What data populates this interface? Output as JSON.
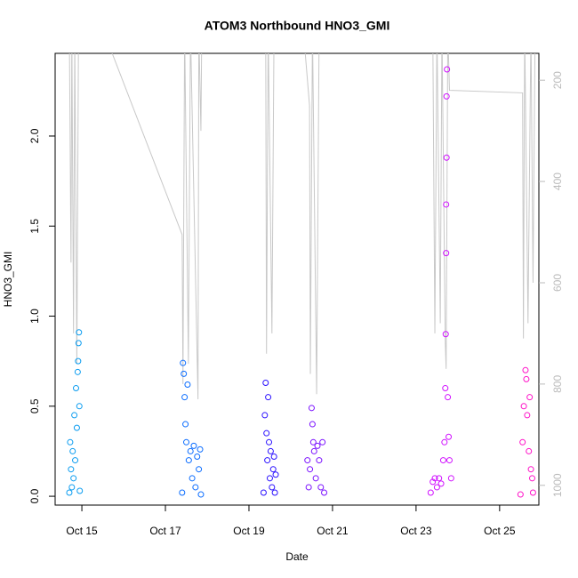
{
  "chart_data": {
    "type": "scatter",
    "title": "ATOM3 Northbound HNO3_GMI",
    "x_label": "Date",
    "y_label": "HNO3_GMI",
    "xlim": [
      14.36,
      25.94
    ],
    "ylim": [
      -0.049,
      2.459
    ],
    "y2lim": [
      1039,
      147
    ],
    "xticks": [
      {
        "value": 15,
        "label": "Oct 15"
      },
      {
        "value": 17,
        "label": "Oct 17"
      },
      {
        "value": 19,
        "label": "Oct 19"
      },
      {
        "value": 21,
        "label": "Oct 21"
      },
      {
        "value": 23,
        "label": "Oct 23"
      },
      {
        "value": 25,
        "label": "Oct 25"
      }
    ],
    "yticks": [
      {
        "value": 0,
        "label": "0.0"
      },
      0.5,
      {
        "value": 1,
        "label": "1.0"
      },
      1.5,
      {
        "value": 2,
        "label": "2.0"
      }
    ],
    "y2ticks": [
      200,
      400,
      600,
      800,
      1000
    ],
    "series": [
      {
        "color": "#0a9cf0",
        "x": [
          14.7,
          14.72,
          14.74,
          14.76,
          14.78,
          14.8,
          14.82,
          14.84,
          14.86,
          14.88,
          14.9,
          14.91,
          14.92,
          14.93,
          14.94,
          14.95
        ],
        "values": [
          0.02,
          0.3,
          0.15,
          0.05,
          0.25,
          0.1,
          0.45,
          0.2,
          0.6,
          0.38,
          0.69,
          0.75,
          0.85,
          0.91,
          0.5,
          0.03
        ]
      },
      {
        "color": "#0a6cff",
        "x": [
          17.4,
          17.42,
          17.44,
          17.46,
          17.48,
          17.5,
          17.53,
          17.56,
          17.6,
          17.64,
          17.68,
          17.72,
          17.76,
          17.8,
          17.83,
          17.85
        ],
        "values": [
          0.02,
          0.74,
          0.68,
          0.55,
          0.4,
          0.3,
          0.62,
          0.2,
          0.25,
          0.1,
          0.28,
          0.05,
          0.22,
          0.15,
          0.26,
          0.01
        ]
      },
      {
        "color": "#2a10ff",
        "x": [
          19.35,
          19.38,
          19.4,
          19.42,
          19.44,
          19.46,
          19.48,
          19.5,
          19.52,
          19.55,
          19.58,
          19.6,
          19.62,
          19.64
        ],
        "values": [
          0.02,
          0.45,
          0.63,
          0.35,
          0.2,
          0.55,
          0.3,
          0.1,
          0.25,
          0.05,
          0.15,
          0.22,
          0.02,
          0.12
        ]
      },
      {
        "color": "#7a10ff",
        "x": [
          20.4,
          20.43,
          20.46,
          20.5,
          20.52,
          20.54,
          20.56,
          20.6,
          20.64,
          20.68,
          20.72,
          20.76,
          20.8
        ],
        "values": [
          0.2,
          0.05,
          0.15,
          0.49,
          0.4,
          0.3,
          0.25,
          0.1,
          0.28,
          0.2,
          0.05,
          0.3,
          0.02
        ]
      },
      {
        "color": "#d010ff",
        "x": [
          23.35,
          23.4,
          23.45,
          23.5,
          23.55,
          23.6,
          23.65,
          23.68,
          23.7,
          23.71,
          23.72,
          23.72,
          23.73,
          23.73,
          23.74,
          23.76,
          23.78,
          23.8,
          23.84
        ],
        "values": [
          0.02,
          0.08,
          0.1,
          0.05,
          0.1,
          0.07,
          0.2,
          0.3,
          0.6,
          0.9,
          1.35,
          1.62,
          1.88,
          2.22,
          2.37,
          0.55,
          0.33,
          0.2,
          0.1
        ]
      },
      {
        "color": "#ff10c8",
        "x": [
          25.5,
          25.55,
          25.58,
          25.62,
          25.64,
          25.66,
          25.7,
          25.72,
          25.75,
          25.78,
          25.8
        ],
        "values": [
          0.01,
          0.3,
          0.5,
          0.7,
          0.65,
          0.45,
          0.25,
          0.55,
          0.15,
          0.1,
          0.02
        ]
      },
      {
        "type": "line",
        "axis": "y2",
        "color": "#c8c8c8",
        "x": [
          14.7,
          14.74,
          14.76,
          14.8,
          14.83,
          14.88,
          14.92,
          15.6,
          17.4,
          17.42,
          17.46,
          17.55,
          17.6,
          17.78,
          17.8,
          17.85,
          17.87,
          19.4,
          19.42,
          19.46,
          19.55,
          19.6,
          20.3,
          20.45,
          20.47,
          20.52,
          20.62,
          20.68,
          23.4,
          23.45,
          23.5,
          23.58,
          23.62,
          23.7,
          23.72,
          23.76,
          23.8,
          25.55,
          25.57,
          25.6,
          25.68,
          25.75,
          25.8,
          25.85
        ],
        "values": [
          100,
          560,
          100,
          700,
          120,
          760,
          100,
          120,
          505,
          800,
          100,
          760,
          100,
          830,
          100,
          300,
          100,
          100,
          740,
          100,
          700,
          100,
          100,
          250,
          780,
          100,
          820,
          100,
          100,
          700,
          100,
          680,
          100,
          720,
          770,
          100,
          220,
          225,
          710,
          100,
          680,
          100,
          600,
          100
        ]
      }
    ]
  }
}
